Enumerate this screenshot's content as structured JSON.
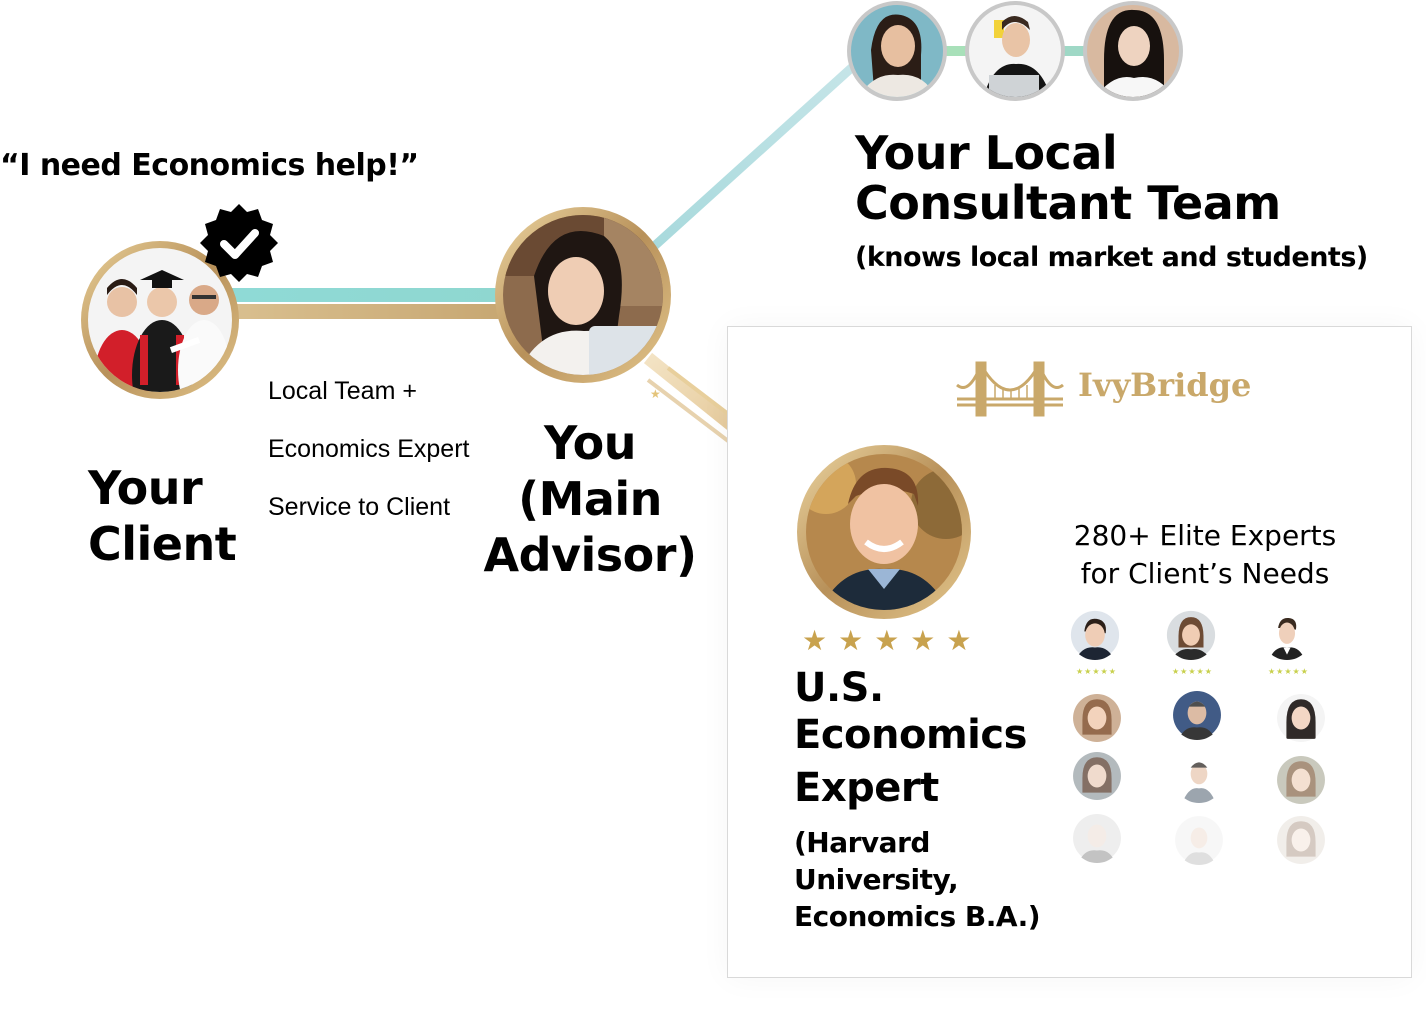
{
  "quote": "“I need Economics help!”",
  "client": {
    "line1": "Your",
    "line2": "Client"
  },
  "service": {
    "line1": "Local Team +",
    "line2": "Economics  Expert",
    "line3": "Service to Client"
  },
  "advisor": {
    "line1": "You",
    "line2": "(Main",
    "line3": "Advisor)"
  },
  "team": {
    "title1": "Your Local",
    "title2": "Consultant Team",
    "subtitle": "(knows local market and students)"
  },
  "brand": {
    "name": "IvyBridge"
  },
  "expert": {
    "title1": "U.S.",
    "title2": "Economics",
    "title3": "Expert",
    "sub1": "(Harvard",
    "sub2": "University,",
    "sub3": "Economics B.A.)",
    "rating": 5,
    "stars": "★★★★★"
  },
  "pool": {
    "line1": "280+ Elite Experts",
    "line2": "for Client’s Needs",
    "mini_stars": "★★★★★"
  },
  "icons": {
    "badge": "verified-check-badge-icon",
    "bridge": "golden-gate-bridge-icon"
  },
  "colors": {
    "gold": "#c9a86a",
    "teal": "#7fd3cf",
    "black": "#000000",
    "panel_border": "#d9d9d9"
  }
}
